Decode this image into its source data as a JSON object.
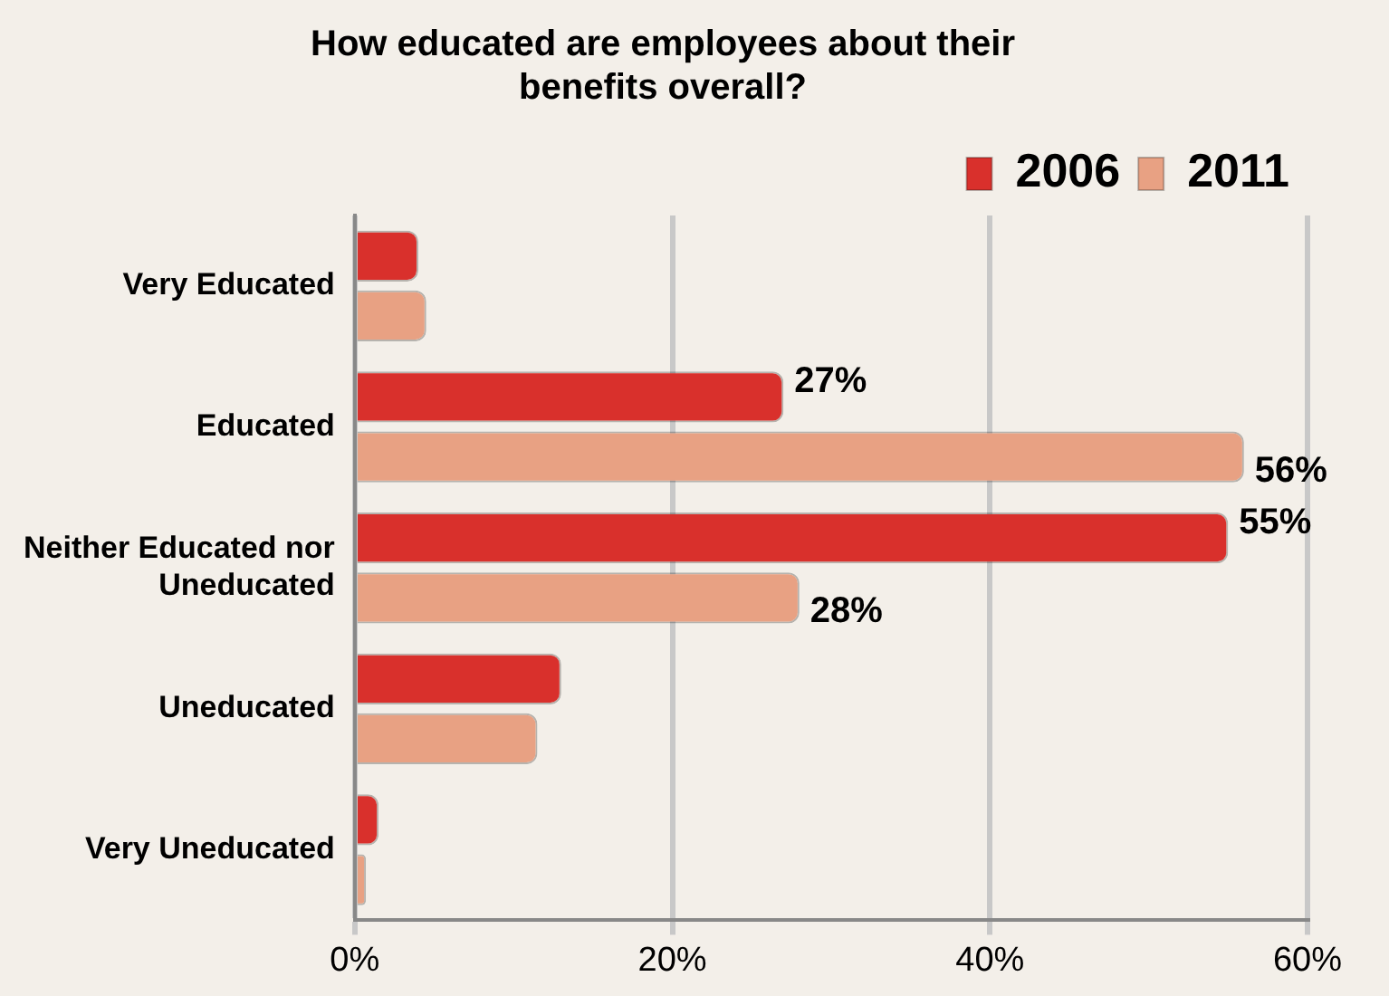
{
  "chart_data": {
    "type": "bar",
    "orientation": "horizontal",
    "title": "How educated are employees about their benefits overall?",
    "categories": [
      "Very Educated",
      "Educated",
      "Neither Educated nor Uneducated",
      "Uneducated",
      "Very Uneducated"
    ],
    "series": [
      {
        "name": "2006",
        "color": "#d9302c",
        "values": [
          4,
          27,
          55,
          13,
          1.5
        ],
        "value_labels": [
          null,
          "27%",
          "55%",
          null,
          null
        ]
      },
      {
        "name": "2011",
        "color": "#e8a183",
        "values": [
          4.5,
          56,
          28,
          11.5,
          0.7
        ],
        "value_labels": [
          null,
          "56%",
          "28%",
          null,
          null
        ]
      }
    ],
    "xlim": [
      0,
      60
    ],
    "xticks": [
      {
        "value": 0,
        "label": "0%"
      },
      {
        "value": 20,
        "label": "20%"
      },
      {
        "value": 40,
        "label": "40%"
      },
      {
        "value": 60,
        "label": "60%"
      }
    ],
    "grid": "x",
    "legend": "top right"
  }
}
